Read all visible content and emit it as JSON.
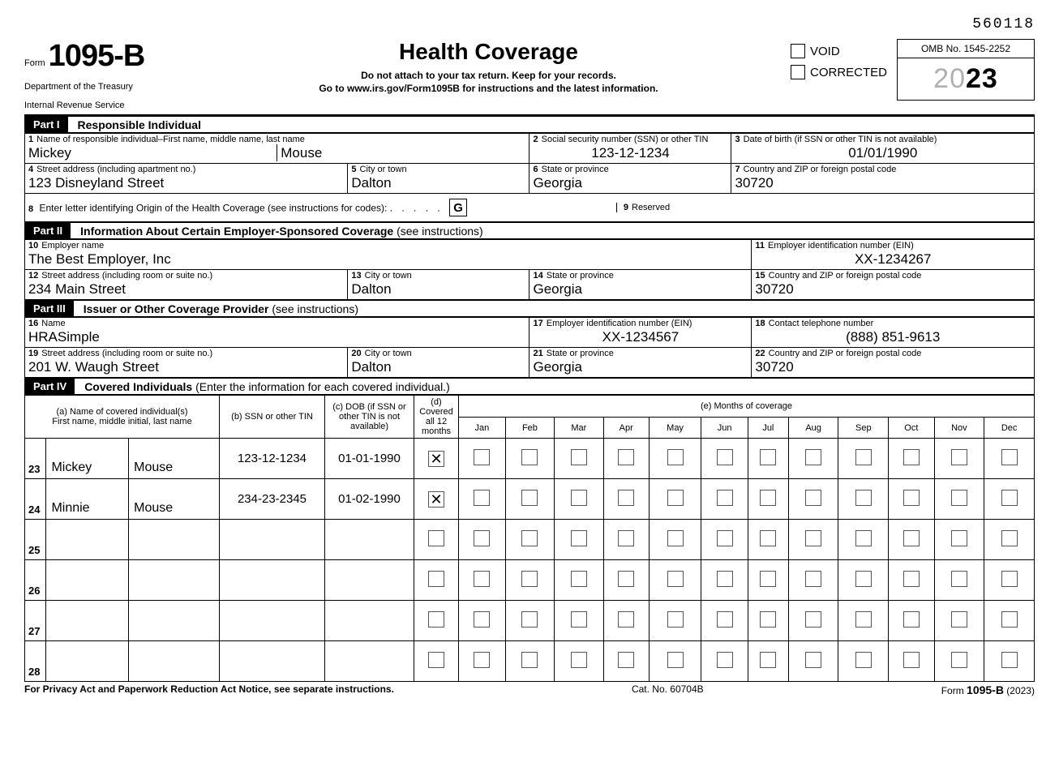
{
  "doc_number": "560118",
  "form": {
    "prefix": "Form",
    "number": "1095-B",
    "dept1": "Department of the Treasury",
    "dept2": "Internal Revenue Service",
    "title": "Health Coverage",
    "sub1": "Do not attach to your tax return. Keep for your records.",
    "sub2": "Go to www.irs.gov/Form1095B for instructions and the latest information.",
    "void": "VOID",
    "corrected": "CORRECTED",
    "omb": "OMB No. 1545-2252",
    "year_gray": "20",
    "year_bold": "23"
  },
  "parts": {
    "p1": "Part I",
    "p1_title": "Responsible Individual",
    "p2": "Part II",
    "p2_title": "Information About Certain Employer-Sponsored Coverage ",
    "p2_sub": "(see instructions)",
    "p3": "Part III",
    "p3_title": "Issuer or Other Coverage Provider ",
    "p3_sub": "(see instructions)",
    "p4": "Part IV",
    "p4_title": "Covered Individuals ",
    "p4_sub": "(Enter the information for each covered individual.)"
  },
  "labels": {
    "f1": "Name of responsible individual–First name, middle name, last name",
    "f2": "Social security number (SSN) or other TIN",
    "f3": "Date of birth (if SSN or other TIN is not available)",
    "f4": "Street address (including apartment no.)",
    "f5": "City or town",
    "f6": "State or province",
    "f7": "Country and ZIP or foreign postal code",
    "f8": "Enter letter identifying Origin of the Health Coverage (see instructions for codes):",
    "f9": "Reserved",
    "f10": "Employer name",
    "f11": "Employer identification number (EIN)",
    "f12": "Street address (including room or suite no.)",
    "f13": "City or town",
    "f14": "State or province",
    "f15": "Country and ZIP or foreign postal code",
    "f16": "Name",
    "f17": "Employer identification number (EIN)",
    "f18": "Contact telephone number",
    "f19": "Street address (including room or suite no.)",
    "f20": "City or town",
    "f21": "State or province",
    "f22": "Country and ZIP or foreign postal code"
  },
  "values": {
    "first": "Mickey",
    "last": "Mouse",
    "ssn": "123-12-1234",
    "dob": "01/01/1990",
    "addr": "123 Disneyland Street",
    "city": "Dalton",
    "state": "Georgia",
    "zip": "30720",
    "origin": "G",
    "emp_name": "The Best Employer, Inc",
    "emp_ein": "XX-1234267",
    "emp_addr": "234 Main Street",
    "emp_city": "Dalton",
    "emp_state": "Georgia",
    "emp_zip": "30720",
    "iss_name": "HRASimple",
    "iss_ein": "XX-1234567",
    "iss_phone": "(888) 851-9613",
    "iss_addr": "201 W. Waugh Street",
    "iss_city": "Dalton",
    "iss_state": "Georgia",
    "iss_zip": "30720"
  },
  "covered_headers": {
    "a": "(a) Name of covered individual(s)\nFirst name, middle initial, last name",
    "b": "(b) SSN or other TIN",
    "c": "(c) DOB (if SSN or other TIN is not available)",
    "d": "(d) Covered all 12 months",
    "e": "(e) Months of coverage",
    "months": [
      "Jan",
      "Feb",
      "Mar",
      "Apr",
      "May",
      "Jun",
      "Jul",
      "Aug",
      "Sep",
      "Oct",
      "Nov",
      "Dec"
    ]
  },
  "covered": [
    {
      "num": "23",
      "first": "Mickey",
      "last": "Mouse",
      "ssn": "123-12-1234",
      "dob": "01-01-1990",
      "all12": true,
      "months": [
        false,
        false,
        false,
        false,
        false,
        false,
        false,
        false,
        false,
        false,
        false,
        false
      ]
    },
    {
      "num": "24",
      "first": "Minnie",
      "last": "Mouse",
      "ssn": "234-23-2345",
      "dob": "01-02-1990",
      "all12": true,
      "months": [
        false,
        false,
        false,
        false,
        false,
        false,
        false,
        false,
        false,
        false,
        false,
        false
      ]
    },
    {
      "num": "25",
      "first": "",
      "last": "",
      "ssn": "",
      "dob": "",
      "all12": false,
      "months": [
        false,
        false,
        false,
        false,
        false,
        false,
        false,
        false,
        false,
        false,
        false,
        false
      ]
    },
    {
      "num": "26",
      "first": "",
      "last": "",
      "ssn": "",
      "dob": "",
      "all12": false,
      "months": [
        false,
        false,
        false,
        false,
        false,
        false,
        false,
        false,
        false,
        false,
        false,
        false
      ]
    },
    {
      "num": "27",
      "first": "",
      "last": "",
      "ssn": "",
      "dob": "",
      "all12": false,
      "months": [
        false,
        false,
        false,
        false,
        false,
        false,
        false,
        false,
        false,
        false,
        false,
        false
      ]
    },
    {
      "num": "28",
      "first": "",
      "last": "",
      "ssn": "",
      "dob": "",
      "all12": false,
      "months": [
        false,
        false,
        false,
        false,
        false,
        false,
        false,
        false,
        false,
        false,
        false,
        false
      ]
    }
  ],
  "footer": {
    "left": "For Privacy Act and Paperwork Reduction Act Notice, see separate instructions.",
    "center": "Cat. No. 60704B",
    "right_pre": "Form ",
    "right_form": "1095-B",
    "right_post": " (2023)"
  },
  "dots": ". . . . ."
}
